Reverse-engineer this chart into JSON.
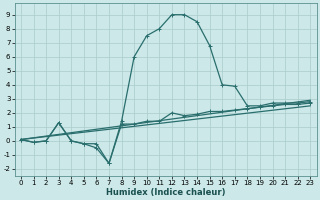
{
  "xlabel": "Humidex (Indice chaleur)",
  "bg_color": "#cce8e8",
  "grid_color": "#aacccc",
  "line_color": "#2a6e6e",
  "spine_color": "#5a9090",
  "xlim": [
    -0.5,
    23.5
  ],
  "ylim": [
    -2.5,
    9.8
  ],
  "xticks": [
    0,
    1,
    2,
    3,
    4,
    5,
    6,
    7,
    8,
    9,
    10,
    11,
    12,
    13,
    14,
    15,
    16,
    17,
    18,
    19,
    20,
    21,
    22,
    23
  ],
  "yticks": [
    -2,
    -1,
    0,
    1,
    2,
    3,
    4,
    5,
    6,
    7,
    8,
    9
  ],
  "line1_x": [
    0,
    1,
    2,
    3,
    4,
    5,
    6,
    7,
    8,
    9,
    10,
    11,
    12,
    13,
    14,
    15,
    16,
    17,
    18,
    19,
    20,
    21,
    22,
    23
  ],
  "line1_y": [
    0.1,
    -0.1,
    0.0,
    1.3,
    0.0,
    -0.2,
    -0.2,
    -1.6,
    1.4,
    6.0,
    7.5,
    8.0,
    9.0,
    9.0,
    8.5,
    6.8,
    4.0,
    3.9,
    2.5,
    2.5,
    2.7,
    2.7,
    2.7,
    2.8
  ],
  "line2_x": [
    0,
    1,
    2,
    3,
    4,
    5,
    6,
    7,
    8,
    9,
    10,
    11,
    12,
    13,
    14,
    15,
    16,
    17,
    18,
    19,
    20,
    21,
    22,
    23
  ],
  "line2_y": [
    0.1,
    -0.1,
    0.0,
    1.3,
    0.0,
    -0.2,
    -0.5,
    -1.6,
    1.2,
    1.2,
    1.4,
    1.4,
    2.0,
    1.8,
    1.9,
    2.1,
    2.1,
    2.2,
    2.3,
    2.4,
    2.5,
    2.6,
    2.6,
    2.7
  ],
  "line3_x": [
    0,
    23
  ],
  "line3_y": [
    0.1,
    2.9
  ],
  "line4_x": [
    0,
    23
  ],
  "line4_y": [
    0.1,
    2.5
  ]
}
